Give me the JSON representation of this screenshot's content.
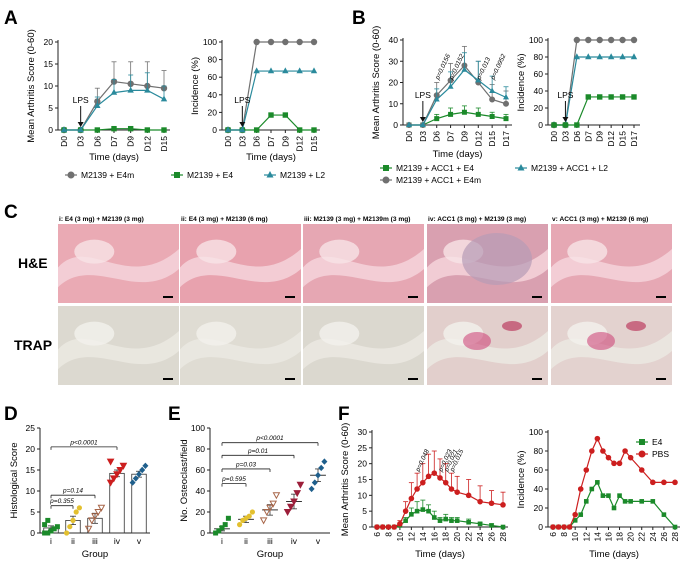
{
  "colors": {
    "grey": "#707070",
    "green": "#1b8a2a",
    "teal": "#2a8a9c",
    "red": "#cc1f1f",
    "olive": "#b9a12a",
    "yellow": "#e3c02f",
    "brown": "#a8674a",
    "maroon": "#9c1f3a",
    "blue": "#1f5f8c"
  },
  "panels": {
    "A": "A",
    "B": "B",
    "C": "C",
    "D": "D",
    "E": "E",
    "F": "F"
  },
  "chart_data": [
    {
      "id": "A1",
      "type": "line",
      "ylabel": "Mean Arthritis Score (0-60)",
      "xlabel": "Time (days)",
      "categories": [
        "D0",
        "D3",
        "D6",
        "D7",
        "D9",
        "D12",
        "D15"
      ],
      "ylim": [
        0,
        20
      ],
      "yticks": [
        0,
        5,
        10,
        15,
        20
      ],
      "annotation": "LPS",
      "annotation_x": "D3",
      "series": [
        {
          "name": "M2139 + E4m",
          "color": "#707070",
          "marker": "circle",
          "values": [
            0,
            0,
            6.5,
            11,
            10.5,
            10,
            9.5
          ],
          "err": [
            0,
            0,
            3,
            4.5,
            5,
            5.5,
            4
          ]
        },
        {
          "name": "M2139 + E4",
          "color": "#1b8a2a",
          "marker": "square",
          "values": [
            0,
            0,
            0,
            0.3,
            0.3,
            0,
            0
          ],
          "err": [
            0,
            0,
            0,
            0,
            0,
            0,
            0
          ]
        },
        {
          "name": "M2139 + L2",
          "color": "#2a8a9c",
          "marker": "triangle",
          "values": [
            0,
            0,
            5.5,
            8.5,
            9,
            9,
            7
          ],
          "err": [
            0,
            0,
            2,
            3,
            3.5,
            4,
            3
          ]
        }
      ]
    },
    {
      "id": "A2",
      "type": "line",
      "ylabel": "Incidence (%)",
      "xlabel": "Time (days)",
      "categories": [
        "D0",
        "D3",
        "D6",
        "D7",
        "D9",
        "D12",
        "D15"
      ],
      "ylim": [
        0,
        100
      ],
      "yticks": [
        0,
        20,
        40,
        60,
        80,
        100
      ],
      "annotation": "LPS",
      "annotation_x": "D3",
      "series": [
        {
          "name": "M2139 + E4m",
          "color": "#707070",
          "marker": "circle",
          "values": [
            0,
            0,
            100,
            100,
            100,
            100,
            100
          ]
        },
        {
          "name": "M2139 + E4",
          "color": "#1b8a2a",
          "marker": "square",
          "values": [
            0,
            0,
            0,
            17,
            17,
            0,
            0
          ]
        },
        {
          "name": "M2139 + L2",
          "color": "#2a8a9c",
          "marker": "triangle",
          "values": [
            0,
            0,
            67,
            67,
            67,
            67,
            67
          ]
        }
      ]
    },
    {
      "id": "B1",
      "type": "line",
      "ylabel": "Mean Arthritis Score (0-60)",
      "xlabel": "Time (days)",
      "categories": [
        "D0",
        "D3",
        "D6",
        "D7",
        "D9",
        "D12",
        "D15",
        "D17"
      ],
      "ylim": [
        0,
        40
      ],
      "yticks": [
        0,
        10,
        20,
        30,
        40
      ],
      "annotation": "LPS",
      "annotation_x": "D3",
      "pvalue_labels": [
        "p=0.0156",
        "p=0.0152",
        "p=0.013",
        "p=0.0952"
      ],
      "pvalue_x": [
        "D6",
        "D7",
        "D12",
        "D15"
      ],
      "series": [
        {
          "name": "M2139 + ACC1 + E4",
          "color": "#1b8a2a",
          "marker": "square",
          "values": [
            0,
            0,
            3,
            5,
            6,
            5,
            4,
            3
          ],
          "err": [
            0,
            0,
            2,
            3,
            3,
            3,
            2,
            2
          ]
        },
        {
          "name": "M2139 + ACC1 + E4m",
          "color": "#707070",
          "marker": "circle",
          "values": [
            0,
            0,
            14,
            21,
            28,
            20,
            12,
            10
          ],
          "err": [
            0,
            0,
            6,
            8,
            9,
            10,
            7,
            6
          ]
        },
        {
          "name": "M2139 + ACC1 + L2",
          "color": "#2a8a9c",
          "marker": "triangle",
          "values": [
            0,
            0,
            12,
            18,
            26,
            21,
            16,
            13
          ],
          "err": [
            0,
            0,
            5,
            7,
            8,
            9,
            7,
            5
          ]
        }
      ]
    },
    {
      "id": "B2",
      "type": "line",
      "ylabel": "Incidence (%)",
      "xlabel": "",
      "categories": [
        "D0",
        "D3",
        "D6",
        "D7",
        "D9",
        "D12",
        "D15",
        "D17"
      ],
      "ylim": [
        0,
        100
      ],
      "yticks": [
        0,
        20,
        40,
        60,
        80,
        100
      ],
      "annotation": "LPS",
      "annotation_x": "D3",
      "series": [
        {
          "name": "M2139 + ACC1 + E4m",
          "color": "#707070",
          "marker": "circle",
          "values": [
            0,
            0,
            100,
            100,
            100,
            100,
            100,
            100
          ]
        },
        {
          "name": "M2139 + ACC1 + L2",
          "color": "#2a8a9c",
          "marker": "triangle",
          "values": [
            0,
            0,
            80,
            80,
            80,
            80,
            80,
            80
          ]
        },
        {
          "name": "M2139 + ACC1 + E4",
          "color": "#1b8a2a",
          "marker": "square",
          "values": [
            0,
            0,
            0,
            33,
            33,
            33,
            33,
            33
          ]
        }
      ]
    },
    {
      "id": "D",
      "type": "bar",
      "ylabel": "Histological Score",
      "xlabel": "Group",
      "categories": [
        "i",
        "ii",
        "iii",
        "iv",
        "v"
      ],
      "ylim": [
        0,
        25
      ],
      "yticks": [
        0,
        5,
        10,
        15,
        20,
        25
      ],
      "means": [
        1.2,
        3,
        3.5,
        14.2,
        14
      ],
      "sem": [
        0.5,
        1,
        1.2,
        0.8,
        0.7
      ],
      "point_colors": [
        "#1b8a2a",
        "#e3c02f",
        "#a8674a",
        "#cc1f1f",
        "#1f5f8c"
      ],
      "points": [
        [
          0,
          0,
          0.5,
          1,
          1.5,
          2,
          3,
          0.5
        ],
        [
          0,
          1.5,
          3,
          5,
          6
        ],
        [
          1,
          3,
          4,
          5,
          6
        ],
        [
          12,
          13,
          14,
          15,
          16,
          17
        ],
        [
          12,
          13,
          14,
          15,
          16
        ]
      ],
      "comparisons": [
        {
          "label": "p<0.0001",
          "from": "i",
          "to": "iv",
          "y": 20.5
        },
        {
          "label": "p=0.14",
          "from": "i",
          "to": "iii",
          "y": 9
        },
        {
          "label": "p=0.355",
          "from": "i",
          "to": "ii",
          "y": 6.5
        }
      ]
    },
    {
      "id": "E",
      "type": "scatter",
      "ylabel": "No. Osteoclast/field",
      "xlabel": "Group",
      "categories": [
        "i",
        "ii",
        "iii",
        "iv",
        "v"
      ],
      "ylim": [
        0,
        100
      ],
      "yticks": [
        0,
        20,
        40,
        60,
        80,
        100
      ],
      "means": [
        4,
        13,
        22,
        30,
        55
      ],
      "sem": [
        2,
        3,
        5,
        7,
        6
      ],
      "point_colors": [
        "#1b8a2a",
        "#e3c02f",
        "#a8674a",
        "#9c1f3a",
        "#1f5f8c"
      ],
      "points": [
        [
          0,
          2,
          5,
          8,
          14
        ],
        [
          8,
          12,
          14,
          16,
          20
        ],
        [
          12,
          20,
          24,
          28,
          36
        ],
        [
          20,
          25,
          30,
          38,
          46
        ],
        [
          42,
          48,
          55,
          62,
          68
        ]
      ],
      "comparisons": [
        {
          "label": "p<0.0001",
          "from": "i",
          "to": "v",
          "y": 86
        },
        {
          "label": "p=0.01",
          "from": "i",
          "to": "iv",
          "y": 74
        },
        {
          "label": "p=0.03",
          "from": "i",
          "to": "iii",
          "y": 61
        },
        {
          "label": "p=0.595",
          "from": "i",
          "to": "ii",
          "y": 47
        }
      ]
    },
    {
      "id": "F1",
      "type": "line",
      "ylabel": "Mean Arthritis Score (0-60)",
      "xlabel": "Time (days)",
      "x": [
        6,
        7,
        8,
        9,
        10,
        11,
        12,
        13,
        14,
        15,
        16,
        17,
        18,
        19,
        20,
        22,
        24,
        26,
        28
      ],
      "xticks": [
        6,
        8,
        10,
        12,
        14,
        16,
        18,
        20,
        22,
        24,
        26,
        28
      ],
      "ylim": [
        0,
        30
      ],
      "yticks": [
        0,
        5,
        10,
        15,
        20,
        25,
        30
      ],
      "pvalue_labels": [
        "p=0.048",
        "p=0.023",
        "p=0.021",
        "p=0.015"
      ],
      "pvalue_x": [
        13,
        17,
        18,
        19
      ],
      "series": [
        {
          "name": "E4",
          "color": "#1b8a2a",
          "marker": "square",
          "values": [
            0,
            0,
            0,
            0,
            0.5,
            2,
            4,
            5,
            5.5,
            5,
            3,
            2,
            2.5,
            2,
            2,
            1.5,
            1,
            0.5,
            0
          ],
          "err": [
            0,
            0,
            0,
            0,
            0.5,
            1,
            2,
            3,
            3,
            2,
            2,
            1,
            1.5,
            1,
            1,
            1,
            0.5,
            0.5,
            0
          ]
        },
        {
          "name": "PBS",
          "color": "#cc1f1f",
          "marker": "circle",
          "values": [
            0,
            0,
            0,
            0,
            1,
            5,
            9,
            12,
            14,
            16,
            17,
            15.5,
            14,
            12,
            11,
            10,
            8,
            7.5,
            7
          ],
          "err": [
            0,
            0,
            0,
            0,
            1,
            3,
            5,
            5,
            6,
            7,
            7,
            6,
            6,
            5,
            5,
            5,
            5,
            4,
            4
          ]
        }
      ]
    },
    {
      "id": "F2",
      "type": "line",
      "ylabel": "Incidence (%)",
      "xlabel": "Time (days)",
      "x": [
        6,
        7,
        8,
        9,
        10,
        11,
        12,
        13,
        14,
        15,
        16,
        17,
        18,
        19,
        20,
        22,
        24,
        26,
        28
      ],
      "xticks": [
        6,
        8,
        10,
        12,
        14,
        16,
        18,
        20,
        22,
        24,
        26,
        28
      ],
      "ylim": [
        0,
        100
      ],
      "yticks": [
        0,
        20,
        40,
        60,
        80,
        100
      ],
      "legend": "top-right",
      "series": [
        {
          "name": "E4",
          "color": "#1b8a2a",
          "marker": "square",
          "values": [
            0,
            0,
            0,
            0,
            7,
            13,
            27,
            40,
            47,
            33,
            33,
            20,
            33,
            27,
            27,
            27,
            27,
            13,
            0
          ]
        },
        {
          "name": "PBS",
          "color": "#cc1f1f",
          "marker": "circle",
          "values": [
            0,
            0,
            0,
            0,
            13,
            40,
            60,
            80,
            93,
            80,
            73,
            67,
            67,
            80,
            73,
            60,
            47,
            47,
            47
          ]
        }
      ]
    }
  ],
  "legend_A": [
    "M2139 + E4m",
    "M2139 + E4",
    "M2139 + L2"
  ],
  "legend_B": [
    "M2139 + ACC1 + E4",
    "M2139 + ACC1 + L2",
    "M2139 + ACC1 + E4m"
  ],
  "histology": {
    "row_labels": [
      "H&E",
      "TRAP"
    ],
    "titles": [
      "i: E4 (3 mg) + M2139 (3 mg)",
      "ii: E4 (3 mg) + M2139 (6 mg)",
      "iii: M2139 (3 mg) + M2139m (3 mg)",
      "iv: ACC1 (3 mg) + M2139 (3 mg)",
      "v: ACC1 (3 mg) + M2139 (6 mg)"
    ]
  }
}
